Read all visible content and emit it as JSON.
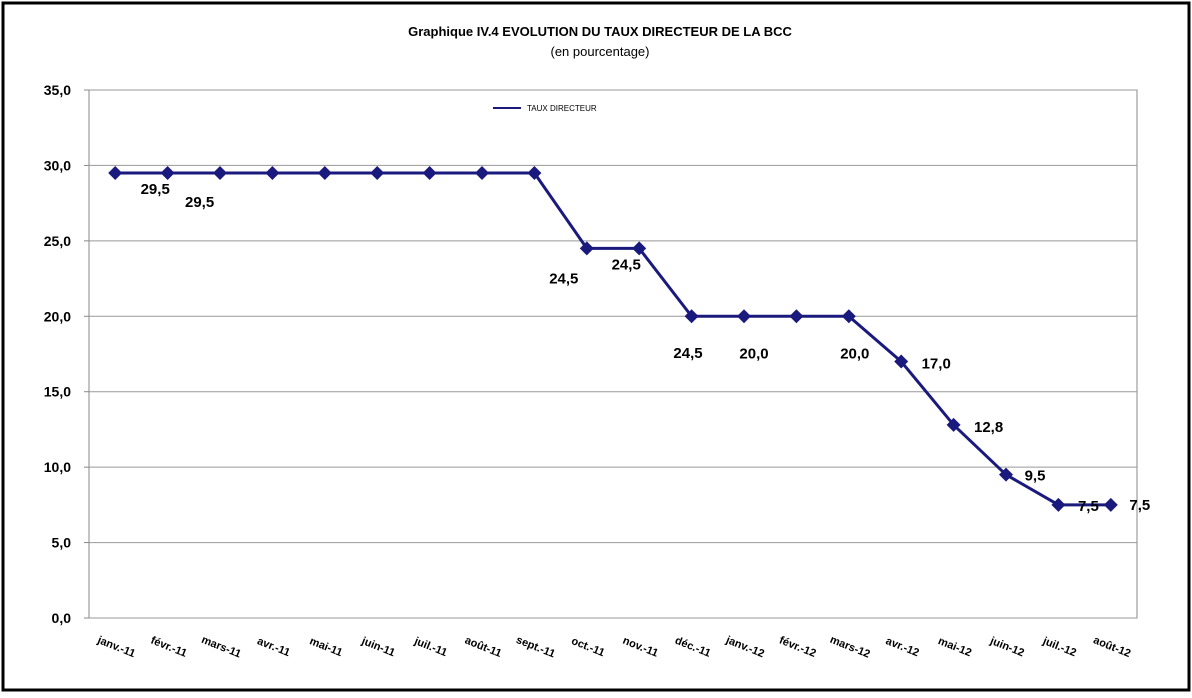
{
  "chart_data": {
    "type": "line",
    "title": "Graphique IV.4  EVOLUTION  DU TAUX DIRECTEUR DE LA BCC",
    "subtitle": "(en pourcentage)",
    "categories": [
      "janv.-11",
      "févr.-11",
      "mars-11",
      "avr.-11",
      "mai-11",
      "juin-11",
      "juil.-11",
      "août-11",
      "sept.-11",
      "oct.-11",
      "nov.-11",
      "déc.-11",
      "janv.-12",
      "févr.-12",
      "mars-12",
      "avr.-12",
      "mai-12",
      "juin-12",
      "juil.-12",
      "août-12"
    ],
    "series": [
      {
        "name": "TAUX DIRECTEUR",
        "color": "#1a1a7e",
        "values": [
          29.5,
          29.5,
          29.5,
          29.5,
          29.5,
          29.5,
          29.5,
          29.5,
          29.5,
          24.5,
          24.5,
          20,
          20,
          20,
          20,
          17,
          12.8,
          9.5,
          7.5,
          7.5
        ],
        "value_labels": [
          "29,5",
          "29,5",
          null,
          null,
          null,
          null,
          null,
          null,
          null,
          "24,5",
          "24,5",
          null,
          "20,0",
          null,
          "20,0",
          "17,0",
          "12,8",
          "9,5",
          "7,5",
          "7,5"
        ]
      }
    ],
    "annotations": [
      "24,5"
    ],
    "ylim": [
      0,
      35
    ],
    "yticks": [
      {
        "value": 0,
        "label": "0,0"
      },
      {
        "value": 5,
        "label": "5,0"
      },
      {
        "value": 10,
        "label": "10,0"
      },
      {
        "value": 15,
        "label": "15,0"
      },
      {
        "value": 20,
        "label": "20,0"
      },
      {
        "value": 25,
        "label": "25,0"
      },
      {
        "value": 30,
        "label": "30,0"
      },
      {
        "value": 35,
        "label": "35,0"
      }
    ],
    "grid": true,
    "legend": "top"
  }
}
